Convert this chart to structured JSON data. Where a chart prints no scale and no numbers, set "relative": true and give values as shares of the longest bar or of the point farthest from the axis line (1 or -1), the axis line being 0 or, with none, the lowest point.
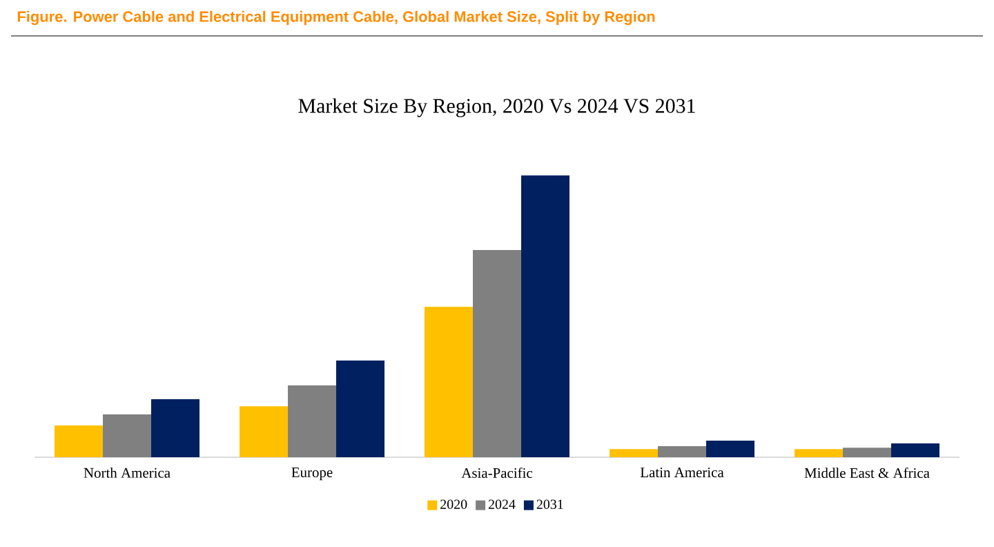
{
  "chart_data": {
    "type": "bar",
    "title": "Figure.   Power Cable and Electrical Equipment Cable, Global Market Size, Split by Region",
    "subtitle": "Market Size By Region, 2020 Vs 2024 VS 2031",
    "categories": [
      "North America",
      "Europe",
      "Asia-Pacific",
      "Latin America",
      "Middle East & Africa"
    ],
    "relative": true,
    "legend": "bottom",
    "series": [
      {
        "name": "2020",
        "color": "#ffc000",
        "values": [
          0.113,
          0.181,
          0.534,
          0.029,
          0.029
        ]
      },
      {
        "name": "2024",
        "color": "#808080",
        "values": [
          0.152,
          0.255,
          0.735,
          0.039,
          0.034
        ]
      },
      {
        "name": "2031",
        "color": "#002060",
        "values": [
          0.206,
          0.343,
          1,
          0.059,
          0.049
        ]
      }
    ]
  }
}
